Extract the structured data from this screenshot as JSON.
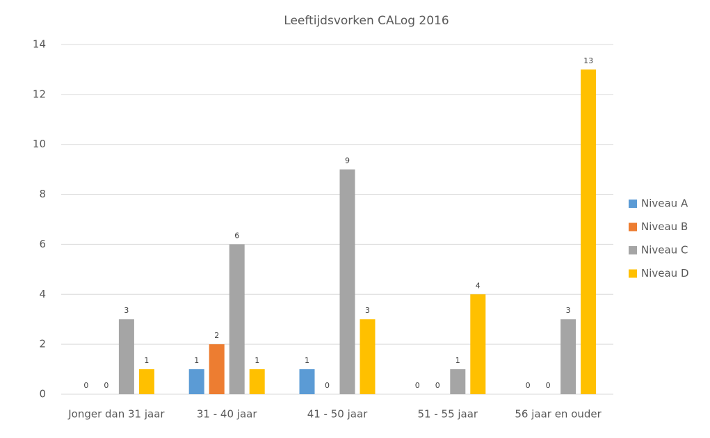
{
  "chart_data": {
    "type": "bar",
    "title": "Leeftijdsvorken CALog 2016",
    "categories": [
      "Jonger dan 31 jaar",
      "31 - 40 jaar",
      "41 - 50 jaar",
      "51 - 55 jaar",
      "56 jaar en ouder"
    ],
    "series": [
      {
        "name": "Niveau A",
        "color": "#5b9bd5",
        "values": [
          0,
          1,
          1,
          0,
          0
        ]
      },
      {
        "name": "Niveau B",
        "color": "#ed7d31",
        "values": [
          0,
          2,
          0,
          0,
          0
        ]
      },
      {
        "name": "Niveau C",
        "color": "#a5a5a5",
        "values": [
          3,
          6,
          9,
          1,
          3
        ]
      },
      {
        "name": "Niveau D",
        "color": "#ffc000",
        "values": [
          1,
          1,
          3,
          4,
          13
        ]
      }
    ],
    "ylim": [
      0,
      14
    ],
    "yticks": [
      0,
      2,
      4,
      6,
      8,
      10,
      12,
      14
    ],
    "grid": true,
    "legend": "right"
  }
}
